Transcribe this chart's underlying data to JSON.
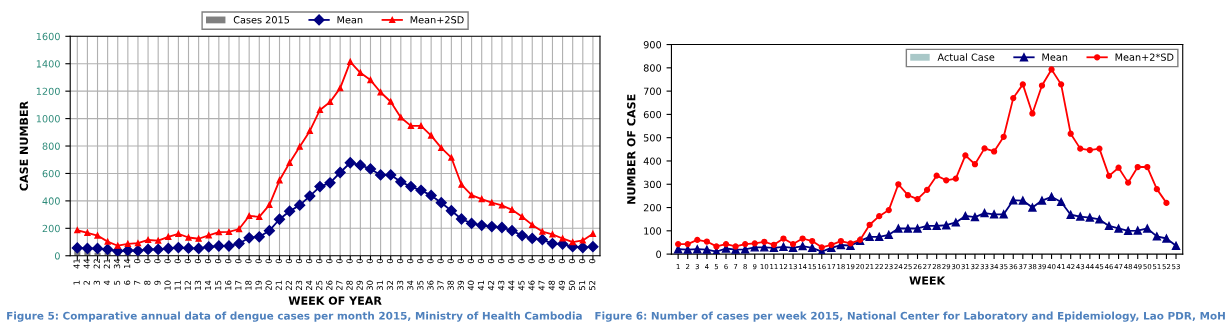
{
  "chart_data": [
    {
      "type": "line",
      "xlabel": "WEEK OF YEAR",
      "ylabel": "CASE NUMBER",
      "categories": [
        "1",
        "2",
        "3",
        "4",
        "5",
        "6",
        "7",
        "8",
        "9",
        "10",
        "11",
        "12",
        "13",
        "14",
        "15",
        "16",
        "17",
        "18",
        "19",
        "20",
        "21",
        "22",
        "23",
        "24",
        "25",
        "26",
        "27",
        "28",
        "29",
        "30",
        "31",
        "32",
        "33",
        "34",
        "35",
        "36",
        "37",
        "38",
        "39",
        "40",
        "41",
        "42",
        "43",
        "44",
        "45",
        "46",
        "47",
        "48",
        "49",
        "50",
        "51",
        "52"
      ],
      "ylim": [
        0,
        1600
      ],
      "yticks": [
        0,
        200,
        400,
        600,
        800,
        1000,
        1200,
        1400,
        1600
      ],
      "grid": true,
      "legend": "top",
      "series": [
        {
          "name": "Cases 2015",
          "type": "bar",
          "color": "#808080",
          "data_labels": true,
          "values": [
            41,
            44,
            22,
            21,
            34,
            14,
            0,
            0,
            0,
            0,
            0,
            0,
            0,
            0,
            0,
            0,
            0,
            0,
            0,
            0,
            0,
            0,
            0,
            0,
            0,
            0,
            0,
            0,
            0,
            0,
            0,
            0,
            0,
            0,
            0,
            0,
            0,
            0,
            0,
            0,
            0,
            0,
            0,
            0,
            0,
            0,
            0,
            0,
            0,
            0,
            0,
            0
          ]
        },
        {
          "name": "Mean",
          "type": "line",
          "color": "#000080",
          "marker": "diamond",
          "values": [
            57,
            53,
            53,
            46,
            34,
            39,
            37,
            46,
            46,
            53,
            60,
            55,
            53,
            64,
            71,
            71,
            89,
            131,
            138,
            183,
            266,
            325,
            369,
            435,
            504,
            532,
            607,
            678,
            660,
            633,
            589,
            589,
            539,
            504,
            477,
            440,
            387,
            328,
            268,
            236,
            222,
            213,
            206,
            183,
            147,
            126,
            117,
            89,
            85,
            66,
            60,
            66
          ]
        },
        {
          "name": "Mean+2SD",
          "type": "line",
          "color": "#ff0000",
          "marker": "triangle",
          "values": [
            186,
            167,
            147,
            103,
            73,
            87,
            92,
            115,
            110,
            138,
            160,
            133,
            124,
            149,
            172,
            174,
            195,
            290,
            284,
            371,
            550,
            678,
            795,
            910,
            1063,
            1121,
            1222,
            1414,
            1334,
            1281,
            1192,
            1123,
            1008,
            947,
            947,
            876,
            786,
            715,
            518,
            442,
            413,
            387,
            367,
            335,
            284,
            225,
            176,
            156,
            126,
            99,
            112,
            160
          ]
        }
      ],
      "annotations": [
        "Figure 5: Comparative annual data of dengue cases per month 2015, Ministry of Health Cambodia"
      ]
    },
    {
      "type": "line",
      "xlabel": "WEEK",
      "ylabel": "NUMBER OF CASE",
      "categories": [
        "1",
        "2",
        "3",
        "4",
        "5",
        "6",
        "7",
        "8",
        "9",
        "10",
        "11",
        "12",
        "13",
        "14",
        "15",
        "16",
        "17",
        "18",
        "19",
        "20",
        "21",
        "22",
        "23",
        "24",
        "25",
        "26",
        "27",
        "28",
        "29",
        "30",
        "31",
        "32",
        "33",
        "34",
        "35",
        "36",
        "37",
        "38",
        "39",
        "40",
        "41",
        "42",
        "43",
        "44",
        "45",
        "46",
        "47",
        "48",
        "49",
        "50",
        "51",
        "52",
        "53"
      ],
      "ylim": [
        0,
        900
      ],
      "yticks": [
        0,
        100,
        200,
        300,
        400,
        500,
        600,
        700,
        800,
        900
      ],
      "grid": false,
      "legend": "top right",
      "series": [
        {
          "name": "Actual Case",
          "type": "bar",
          "color": "#a9c8c8",
          "values": [
            null,
            null,
            null,
            null,
            null,
            null,
            null,
            null,
            null,
            null,
            null,
            null,
            null,
            null,
            null,
            null,
            null,
            null,
            null,
            null,
            null,
            null,
            null,
            null,
            null,
            null,
            null,
            null,
            null,
            null,
            null,
            null,
            null,
            null,
            null,
            null,
            null,
            null,
            null,
            null,
            null,
            null,
            null,
            null,
            null,
            null,
            null,
            null,
            null,
            null,
            null,
            null,
            null
          ]
        },
        {
          "name": "Mean",
          "type": "line",
          "color": "#000080",
          "marker": "triangle",
          "values": [
            21,
            19,
            21,
            19,
            11,
            24,
            19,
            20,
            29,
            29,
            27,
            31,
            27,
            34,
            27,
            11,
            27,
            39,
            36,
            57,
            74,
            74,
            83,
            110,
            110,
            110,
            121,
            121,
            124,
            136,
            164,
            159,
            176,
            171,
            171,
            231,
            230,
            200,
            230,
            246,
            224,
            169,
            161,
            157,
            149,
            121,
            110,
            100,
            101,
            110,
            76,
            67,
            36
          ]
        },
        {
          "name": "Mean+2*SD",
          "type": "line",
          "color": "#ff0000",
          "marker": "circle",
          "values": [
            43,
            43,
            61,
            54,
            33,
            43,
            33,
            43,
            46,
            53,
            40,
            67,
            43,
            67,
            56,
            29,
            40,
            56,
            46,
            61,
            126,
            163,
            189,
            300,
            253,
            236,
            276,
            337,
            317,
            324,
            424,
            386,
            454,
            441,
            504,
            670,
            729,
            604,
            724,
            793,
            729,
            517,
            453,
            447,
            453,
            336,
            371,
            307,
            374,
            374,
            279,
            220,
            null
          ]
        }
      ],
      "annotations": [
        "Figure 6: Number of cases per week 2015, National Center for Laboratory and Epidemiology, Lao PDR, MoH"
      ]
    }
  ]
}
